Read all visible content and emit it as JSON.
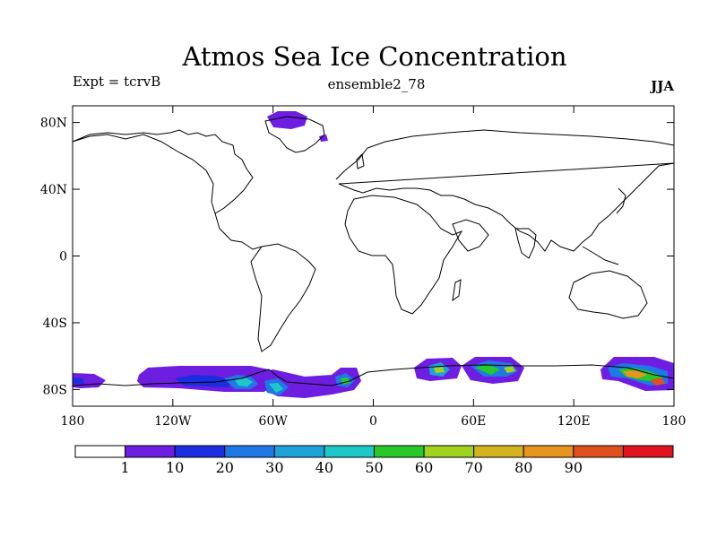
{
  "title": "Atmos Sea Ice Concentration",
  "left_label": "Expt = tcrvB",
  "center_label": "ensemble2_78",
  "right_label": "JJA",
  "lat_ticks": [
    {
      "label": "80N",
      "lat": 80
    },
    {
      "label": "40N",
      "lat": 40
    },
    {
      "label": "0",
      "lat": 0
    },
    {
      "label": "40S",
      "lat": -40
    },
    {
      "label": "80S",
      "lat": -80
    }
  ],
  "lon_ticks": [
    {
      "label": "180",
      "lon": -180
    },
    {
      "label": "120W",
      "lon": -120
    },
    {
      "label": "60W",
      "lon": -60
    },
    {
      "label": "0",
      "lon": 0
    },
    {
      "label": "60E",
      "lon": 60
    },
    {
      "label": "120E",
      "lon": 120
    },
    {
      "label": "180",
      "lon": 180
    }
  ],
  "colorbar": {
    "colors": [
      "#ffffff",
      "#6d1ee0",
      "#1a2ee0",
      "#1e78e6",
      "#1ea3d8",
      "#1ec8c8",
      "#28c828",
      "#a0d21e",
      "#d2b41e",
      "#e6961e",
      "#e0501e",
      "#e0141e"
    ],
    "labels": [
      "1",
      "10",
      "20",
      "30",
      "40",
      "50",
      "60",
      "70",
      "80",
      "90"
    ]
  }
}
